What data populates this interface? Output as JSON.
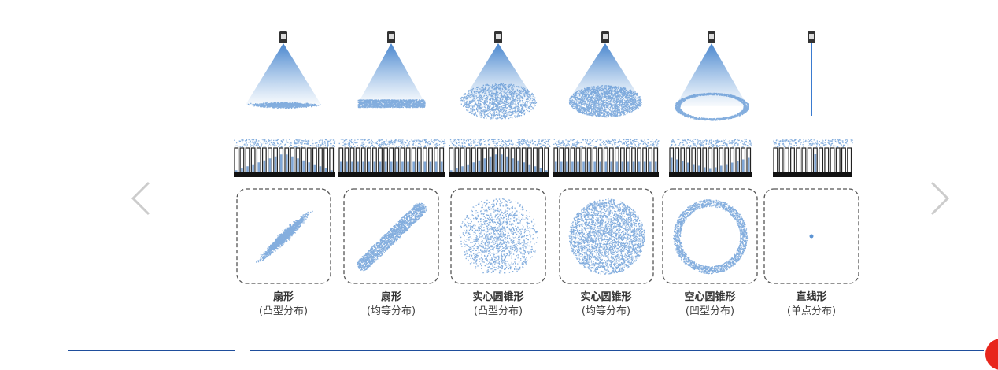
{
  "carousel": {
    "prev_icon": "chevron-left-icon",
    "next_icon": "chevron-right-icon"
  },
  "colors": {
    "spray": "#5b93d3",
    "accent_line": "#1f4e9c",
    "corner": "#e8261c"
  },
  "patterns": [
    {
      "title": "扇形",
      "subtitle": "(凸型分布)",
      "kind": "fan-convex"
    },
    {
      "title": "扇形",
      "subtitle": "(均等分布)",
      "kind": "fan-uniform"
    },
    {
      "title": "实心圆锥形",
      "subtitle": "(凸型分布)",
      "kind": "solid-convex"
    },
    {
      "title": "实心圆锥形",
      "subtitle": "(均等分布)",
      "kind": "solid-uniform"
    },
    {
      "title": "空心圆锥形",
      "subtitle": "(凹型分布)",
      "kind": "hollow"
    },
    {
      "title": "直线形",
      "subtitle": "(单点分布)",
      "kind": "straight"
    }
  ]
}
